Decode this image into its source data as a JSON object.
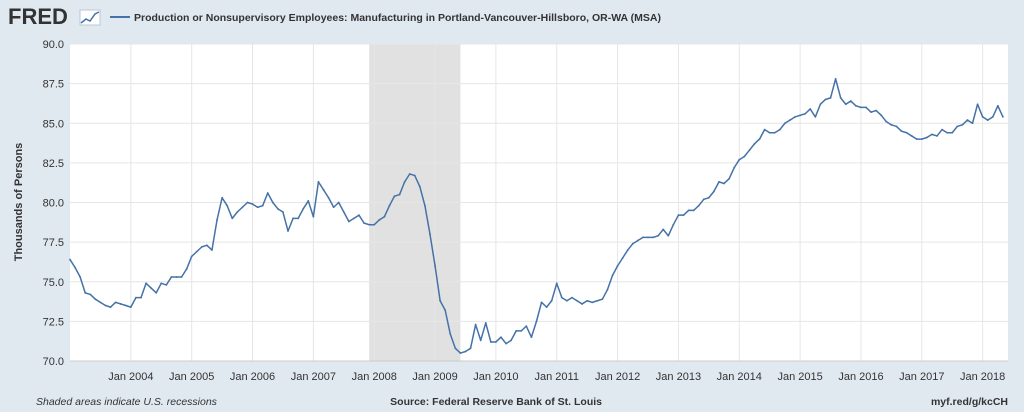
{
  "header": {
    "logo_text": "FRED",
    "legend_label": "Production or Nonsupervisory Employees: Manufacturing in Portland-Vancouver-Hillsboro, OR-WA (MSA)"
  },
  "footer": {
    "note": "Shaded areas indicate U.S. recessions",
    "source": "Source: Federal Reserve Bank of St. Louis",
    "short_url": "myf.red/g/kcCH"
  },
  "colors": {
    "background": "#e1e9f0",
    "plot_bg": "#ffffff",
    "line": "#4572a7",
    "recession": "#e1e1e1",
    "grid": "#e6e6e6"
  },
  "chart_data": {
    "type": "line",
    "ylabel": "Thousands of Persons",
    "ylim": [
      70.0,
      90.0
    ],
    "yticks": [
      "70.0",
      "72.5",
      "75.0",
      "77.5",
      "80.0",
      "82.5",
      "85.0",
      "87.5",
      "90.0"
    ],
    "xlim": [
      "2003-01",
      "2018-06"
    ],
    "xticks": [
      "Jan 2004",
      "Jan 2005",
      "Jan 2006",
      "Jan 2007",
      "Jan 2008",
      "Jan 2009",
      "Jan 2010",
      "Jan 2011",
      "Jan 2012",
      "Jan 2013",
      "Jan 2014",
      "Jan 2015",
      "Jan 2016",
      "Jan 2017",
      "Jan 2018"
    ],
    "recessions": [
      {
        "start": "2007-12",
        "end": "2009-06"
      }
    ],
    "series": [
      {
        "values": [
          [
            "2003-01",
            76.4
          ],
          [
            "2003-02",
            75.9
          ],
          [
            "2003-03",
            75.3
          ],
          [
            "2003-04",
            74.3
          ],
          [
            "2003-05",
            74.2
          ],
          [
            "2003-06",
            73.9
          ],
          [
            "2003-07",
            73.7
          ],
          [
            "2003-08",
            73.5
          ],
          [
            "2003-09",
            73.4
          ],
          [
            "2003-10",
            73.7
          ],
          [
            "2003-11",
            73.6
          ],
          [
            "2003-12",
            73.5
          ],
          [
            "2004-01",
            73.4
          ],
          [
            "2004-02",
            74.0
          ],
          [
            "2004-03",
            74.0
          ],
          [
            "2004-04",
            74.9
          ],
          [
            "2004-05",
            74.6
          ],
          [
            "2004-06",
            74.3
          ],
          [
            "2004-07",
            74.9
          ],
          [
            "2004-08",
            74.8
          ],
          [
            "2004-09",
            75.3
          ],
          [
            "2004-10",
            75.3
          ],
          [
            "2004-11",
            75.3
          ],
          [
            "2004-12",
            75.8
          ],
          [
            "2005-01",
            76.6
          ],
          [
            "2005-02",
            76.9
          ],
          [
            "2005-03",
            77.2
          ],
          [
            "2005-04",
            77.3
          ],
          [
            "2005-05",
            77.0
          ],
          [
            "2005-06",
            78.9
          ],
          [
            "2005-07",
            80.3
          ],
          [
            "2005-08",
            79.8
          ],
          [
            "2005-09",
            79.0
          ],
          [
            "2005-10",
            79.4
          ],
          [
            "2005-11",
            79.7
          ],
          [
            "2005-12",
            80.0
          ],
          [
            "2006-01",
            79.9
          ],
          [
            "2006-02",
            79.7
          ],
          [
            "2006-03",
            79.8
          ],
          [
            "2006-04",
            80.6
          ],
          [
            "2006-05",
            80.0
          ],
          [
            "2006-06",
            79.6
          ],
          [
            "2006-07",
            79.4
          ],
          [
            "2006-08",
            78.2
          ],
          [
            "2006-09",
            79.0
          ],
          [
            "2006-10",
            79.0
          ],
          [
            "2006-11",
            79.6
          ],
          [
            "2006-12",
            80.1
          ],
          [
            "2007-01",
            79.1
          ],
          [
            "2007-02",
            81.3
          ],
          [
            "2007-03",
            80.8
          ],
          [
            "2007-04",
            80.3
          ],
          [
            "2007-05",
            79.7
          ],
          [
            "2007-06",
            80.0
          ],
          [
            "2007-07",
            79.4
          ],
          [
            "2007-08",
            78.8
          ],
          [
            "2007-09",
            79.0
          ],
          [
            "2007-10",
            79.2
          ],
          [
            "2007-11",
            78.7
          ],
          [
            "2007-12",
            78.6
          ],
          [
            "2008-01",
            78.6
          ],
          [
            "2008-02",
            78.9
          ],
          [
            "2008-03",
            79.1
          ],
          [
            "2008-04",
            79.8
          ],
          [
            "2008-05",
            80.4
          ],
          [
            "2008-06",
            80.5
          ],
          [
            "2008-07",
            81.3
          ],
          [
            "2008-08",
            81.8
          ],
          [
            "2008-09",
            81.7
          ],
          [
            "2008-10",
            81.0
          ],
          [
            "2008-11",
            79.8
          ],
          [
            "2008-12",
            78.0
          ],
          [
            "2009-01",
            76.0
          ],
          [
            "2009-02",
            73.8
          ],
          [
            "2009-03",
            73.2
          ],
          [
            "2009-04",
            71.7
          ],
          [
            "2009-05",
            70.8
          ],
          [
            "2009-06",
            70.5
          ],
          [
            "2009-07",
            70.6
          ],
          [
            "2009-08",
            70.8
          ],
          [
            "2009-09",
            72.3
          ],
          [
            "2009-10",
            71.3
          ],
          [
            "2009-11",
            72.4
          ],
          [
            "2009-12",
            71.2
          ],
          [
            "2010-01",
            71.2
          ],
          [
            "2010-02",
            71.5
          ],
          [
            "2010-03",
            71.1
          ],
          [
            "2010-04",
            71.3
          ],
          [
            "2010-05",
            71.9
          ],
          [
            "2010-06",
            71.9
          ],
          [
            "2010-07",
            72.2
          ],
          [
            "2010-08",
            71.5
          ],
          [
            "2010-09",
            72.5
          ],
          [
            "2010-10",
            73.7
          ],
          [
            "2010-11",
            73.4
          ],
          [
            "2010-12",
            73.8
          ],
          [
            "2011-01",
            74.9
          ],
          [
            "2011-02",
            74.0
          ],
          [
            "2011-03",
            73.8
          ],
          [
            "2011-04",
            74.0
          ],
          [
            "2011-05",
            73.8
          ],
          [
            "2011-06",
            73.6
          ],
          [
            "2011-07",
            73.8
          ],
          [
            "2011-08",
            73.7
          ],
          [
            "2011-09",
            73.8
          ],
          [
            "2011-10",
            73.9
          ],
          [
            "2011-11",
            74.5
          ],
          [
            "2011-12",
            75.4
          ],
          [
            "2012-01",
            76.0
          ],
          [
            "2012-02",
            76.5
          ],
          [
            "2012-03",
            77.0
          ],
          [
            "2012-04",
            77.4
          ],
          [
            "2012-05",
            77.6
          ],
          [
            "2012-06",
            77.8
          ],
          [
            "2012-07",
            77.8
          ],
          [
            "2012-08",
            77.8
          ],
          [
            "2012-09",
            77.9
          ],
          [
            "2012-10",
            78.3
          ],
          [
            "2012-11",
            77.9
          ],
          [
            "2012-12",
            78.6
          ],
          [
            "2013-01",
            79.2
          ],
          [
            "2013-02",
            79.2
          ],
          [
            "2013-03",
            79.5
          ],
          [
            "2013-04",
            79.5
          ],
          [
            "2013-05",
            79.8
          ],
          [
            "2013-06",
            80.2
          ],
          [
            "2013-07",
            80.3
          ],
          [
            "2013-08",
            80.7
          ],
          [
            "2013-09",
            81.3
          ],
          [
            "2013-10",
            81.2
          ],
          [
            "2013-11",
            81.5
          ],
          [
            "2013-12",
            82.2
          ],
          [
            "2014-01",
            82.7
          ],
          [
            "2014-02",
            82.9
          ],
          [
            "2014-03",
            83.3
          ],
          [
            "2014-04",
            83.7
          ],
          [
            "2014-05",
            84.0
          ],
          [
            "2014-06",
            84.6
          ],
          [
            "2014-07",
            84.4
          ],
          [
            "2014-08",
            84.4
          ],
          [
            "2014-09",
            84.6
          ],
          [
            "2014-10",
            85.0
          ],
          [
            "2014-11",
            85.2
          ],
          [
            "2014-12",
            85.4
          ],
          [
            "2015-01",
            85.5
          ],
          [
            "2015-02",
            85.6
          ],
          [
            "2015-03",
            85.9
          ],
          [
            "2015-04",
            85.4
          ],
          [
            "2015-05",
            86.2
          ],
          [
            "2015-06",
            86.5
          ],
          [
            "2015-07",
            86.6
          ],
          [
            "2015-08",
            87.8
          ],
          [
            "2015-09",
            86.6
          ],
          [
            "2015-10",
            86.2
          ],
          [
            "2015-11",
            86.4
          ],
          [
            "2015-12",
            86.1
          ],
          [
            "2016-01",
            86.0
          ],
          [
            "2016-02",
            86.0
          ],
          [
            "2016-03",
            85.7
          ],
          [
            "2016-04",
            85.8
          ],
          [
            "2016-05",
            85.5
          ],
          [
            "2016-06",
            85.1
          ],
          [
            "2016-07",
            84.9
          ],
          [
            "2016-08",
            84.8
          ],
          [
            "2016-09",
            84.5
          ],
          [
            "2016-10",
            84.4
          ],
          [
            "2016-11",
            84.2
          ],
          [
            "2016-12",
            84.0
          ],
          [
            "2017-01",
            84.0
          ],
          [
            "2017-02",
            84.1
          ],
          [
            "2017-03",
            84.3
          ],
          [
            "2017-04",
            84.2
          ],
          [
            "2017-05",
            84.6
          ],
          [
            "2017-06",
            84.4
          ],
          [
            "2017-07",
            84.4
          ],
          [
            "2017-08",
            84.8
          ],
          [
            "2017-09",
            84.9
          ],
          [
            "2017-10",
            85.2
          ],
          [
            "2017-11",
            85.0
          ],
          [
            "2017-12",
            86.2
          ],
          [
            "2018-01",
            85.4
          ],
          [
            "2018-02",
            85.2
          ],
          [
            "2018-03",
            85.4
          ],
          [
            "2018-04",
            86.1
          ],
          [
            "2018-05",
            85.4
          ]
        ]
      }
    ]
  }
}
